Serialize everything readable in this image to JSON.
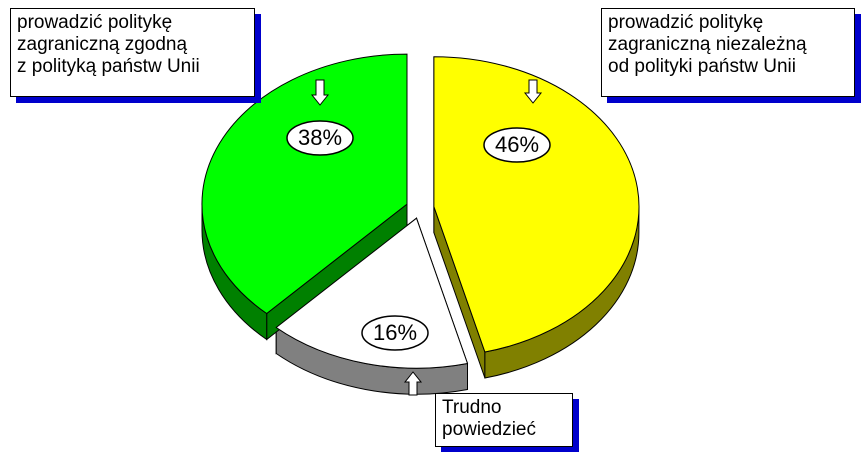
{
  "chart_data": {
    "type": "pie",
    "categories": [
      "prowadzić politykę\nzagraniczną niezależną\nod polityki państw Unii",
      "Trudno\npowiedzieć",
      "prowadzić politykę\nzagraniczną zgodną\nz polityką państw Unii"
    ],
    "values": [
      46,
      16,
      38
    ],
    "value_labels": [
      "46%",
      "16%",
      "38%"
    ],
    "colors": [
      "#ffff00",
      "#ffffff",
      "#00ff00"
    ],
    "side_colors": [
      "#808000",
      "#808080",
      "#008000"
    ]
  }
}
